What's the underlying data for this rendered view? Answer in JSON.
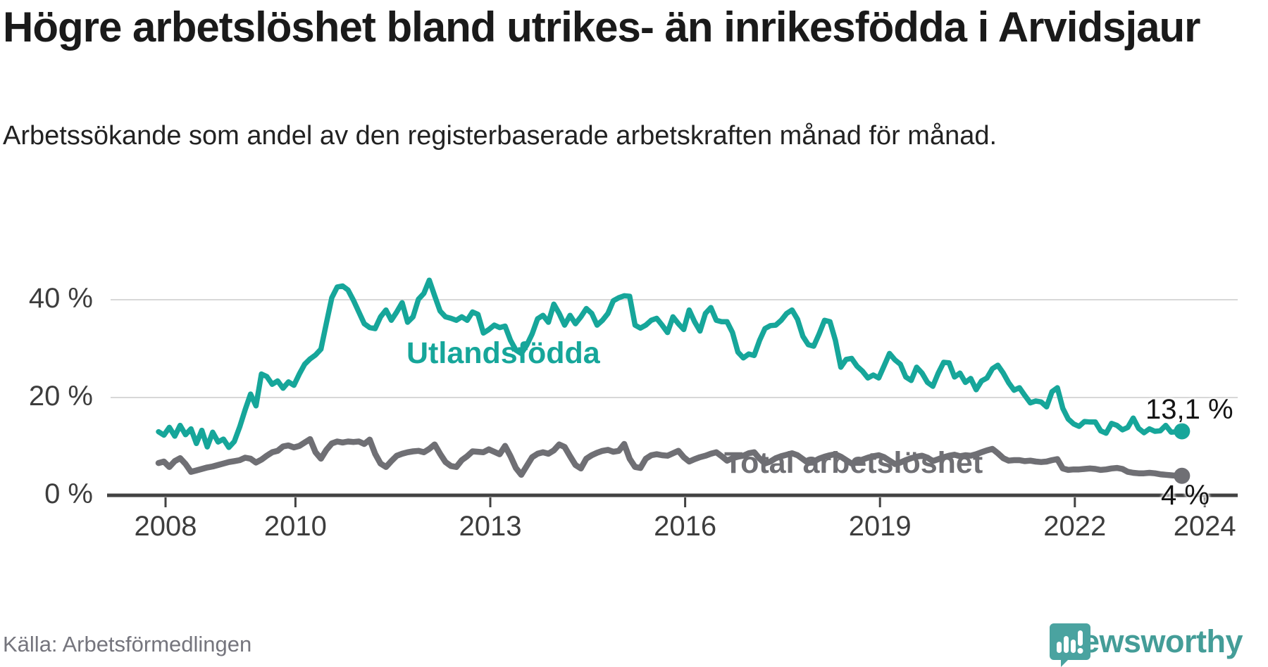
{
  "title": "Högre arbetslöshet bland utrikes- än inrikesfödda i Arvidsjaur",
  "subtitle": "Arbetssökande som andel av den registerbaserade arbetskraften månad för månad.",
  "source": "Källa: Arbetsförmedlingen",
  "branding": {
    "name": "Newsworthy",
    "logo_icon": "speech-bubble-bar-chart",
    "logo_color": "#4aa3a0",
    "text_color": "#449d98"
  },
  "colors": {
    "utlandsfodda": "#16a69a",
    "total": "#6f6f74",
    "grid": "#d8d8d8",
    "axis": "#424242",
    "tick_text": "#3d3d3d"
  },
  "chart_data": {
    "type": "line",
    "title": "Högre arbetslöshet bland utrikes- än inrikesfödda i Arvidsjaur",
    "xlabel": "",
    "ylabel": "",
    "unit": "%",
    "grid": "horizontal-only",
    "x_start": "2007-12",
    "x_end": "2023-09",
    "x_interval": "monthly",
    "ylim": [
      0,
      46
    ],
    "y_ticks": [
      {
        "value": 0,
        "label": "0 %"
      },
      {
        "value": 20,
        "label": "20 %"
      },
      {
        "value": 40,
        "label": "40 %"
      }
    ],
    "x_ticks": [
      {
        "year": 2008,
        "label": "2008"
      },
      {
        "year": 2010,
        "label": "2010"
      },
      {
        "year": 2013,
        "label": "2013"
      },
      {
        "year": 2016,
        "label": "2016"
      },
      {
        "year": 2019,
        "label": "2019"
      },
      {
        "year": 2022,
        "label": "2022"
      },
      {
        "year": 2024,
        "label": "2024"
      }
    ],
    "series": [
      {
        "name": "Utlandsfödda",
        "end_label": "13,1 %",
        "end_value": 13.1,
        "values": [
          13.0,
          12.3,
          13.9,
          12.1,
          14.3,
          12.4,
          13.6,
          10.6,
          13.3,
          9.9,
          12.9,
          10.9,
          11.5,
          9.8,
          11.0,
          14.0,
          17.5,
          20.7,
          18.3,
          24.8,
          24.3,
          22.7,
          23.4,
          21.9,
          23.2,
          22.5,
          24.8,
          26.8,
          27.9,
          28.7,
          29.9,
          35.2,
          40.4,
          42.6,
          42.8,
          42.0,
          39.9,
          37.5,
          35.1,
          34.3,
          34.1,
          36.5,
          37.9,
          35.8,
          37.5,
          39.4,
          35.4,
          36.5,
          40.1,
          41.3,
          44.0,
          40.8,
          37.7,
          36.5,
          36.2,
          35.8,
          36.5,
          35.8,
          37.5,
          37.0,
          33.2,
          33.9,
          34.8,
          34.3,
          34.6,
          31.7,
          29.7,
          29.0,
          30.7,
          33.0,
          36.1,
          36.8,
          35.4,
          39.1,
          37.2,
          34.8,
          36.8,
          35.1,
          36.5,
          38.2,
          37.2,
          34.8,
          35.8,
          37.2,
          39.8,
          40.4,
          40.8,
          40.7,
          34.8,
          34.2,
          34.8,
          35.8,
          36.2,
          34.8,
          33.3,
          36.5,
          35.1,
          33.9,
          37.9,
          35.5,
          33.6,
          37.2,
          38.4,
          35.8,
          35.5,
          35.5,
          33.3,
          29.3,
          28.1,
          28.9,
          28.6,
          31.7,
          34.1,
          34.7,
          34.8,
          35.8,
          37.2,
          37.9,
          36.0,
          32.5,
          30.8,
          30.5,
          33.0,
          35.8,
          35.5,
          31.7,
          26.2,
          27.8,
          28.0,
          26.4,
          25.4,
          24.0,
          24.6,
          24.0,
          26.5,
          29.0,
          27.7,
          26.8,
          24.2,
          23.5,
          26.2,
          25.0,
          23.1,
          22.3,
          25.0,
          27.2,
          27.1,
          24.2,
          25.0,
          23.1,
          23.9,
          21.6,
          23.4,
          24.0,
          25.9,
          26.6,
          25.0,
          23.0,
          21.5,
          22.0,
          20.4,
          18.9,
          19.3,
          19.1,
          18.1,
          21.2,
          22.0,
          17.8,
          15.6,
          14.6,
          14.1,
          15.1,
          15.0,
          15.0,
          13.2,
          12.7,
          14.7,
          14.3,
          13.4,
          13.9,
          15.8,
          13.7,
          12.8,
          13.6,
          13.1,
          13.2,
          14.3,
          12.9,
          13.0,
          13.1
        ]
      },
      {
        "name": "Total arbetslöshet",
        "end_label": "4 %",
        "end_value": 4,
        "values": [
          6.6,
          6.9,
          5.8,
          7.0,
          7.6,
          6.4,
          4.8,
          5.1,
          5.4,
          5.7,
          5.9,
          6.2,
          6.5,
          6.8,
          7.0,
          7.2,
          7.7,
          7.5,
          6.7,
          7.3,
          8.1,
          8.8,
          9.1,
          10.0,
          10.2,
          9.8,
          10.1,
          10.8,
          11.5,
          8.8,
          7.5,
          9.3,
          10.6,
          11.0,
          10.8,
          11.0,
          10.9,
          11.0,
          10.5,
          11.4,
          8.5,
          6.5,
          5.8,
          7.0,
          8.1,
          8.5,
          8.8,
          9.0,
          9.1,
          8.8,
          9.5,
          10.4,
          8.5,
          6.8,
          6.0,
          5.8,
          7.2,
          8.0,
          9.0,
          8.9,
          8.8,
          9.4,
          8.9,
          8.4,
          10.1,
          8.0,
          5.6,
          4.2,
          6.0,
          7.8,
          8.5,
          8.8,
          8.5,
          9.2,
          10.4,
          9.9,
          8.0,
          6.2,
          5.5,
          7.5,
          8.2,
          8.7,
          9.1,
          9.3,
          8.9,
          9.1,
          10.5,
          7.5,
          5.8,
          5.6,
          7.5,
          8.2,
          8.4,
          8.2,
          8.1,
          8.6,
          9.1,
          7.8,
          6.9,
          7.4,
          7.8,
          8.1,
          8.5,
          8.8,
          8.0,
          7.1,
          7.6,
          7.9,
          8.1,
          8.6,
          8.8,
          7.5,
          6.5,
          6.9,
          7.6,
          8.0,
          8.3,
          8.6,
          8.2,
          7.4,
          6.6,
          6.9,
          7.5,
          7.9,
          8.2,
          8.4,
          7.9,
          7.2,
          6.5,
          6.8,
          7.3,
          7.7,
          8.0,
          8.2,
          7.8,
          7.1,
          6.4,
          6.7,
          7.2,
          7.6,
          7.9,
          8.1,
          7.7,
          7.0,
          7.4,
          7.8,
          8.1,
          8.3,
          8.0,
          8.2,
          8.1,
          8.4,
          8.8,
          9.2,
          9.5,
          8.6,
          7.6,
          7.1,
          7.2,
          7.2,
          7.0,
          7.1,
          6.9,
          6.8,
          6.9,
          7.2,
          7.4,
          5.5,
          5.2,
          5.3,
          5.3,
          5.4,
          5.5,
          5.4,
          5.2,
          5.3,
          5.5,
          5.6,
          5.4,
          4.8,
          4.6,
          4.5,
          4.5,
          4.6,
          4.5,
          4.3,
          4.2,
          4.1,
          4.0,
          4.0
        ]
      }
    ]
  }
}
